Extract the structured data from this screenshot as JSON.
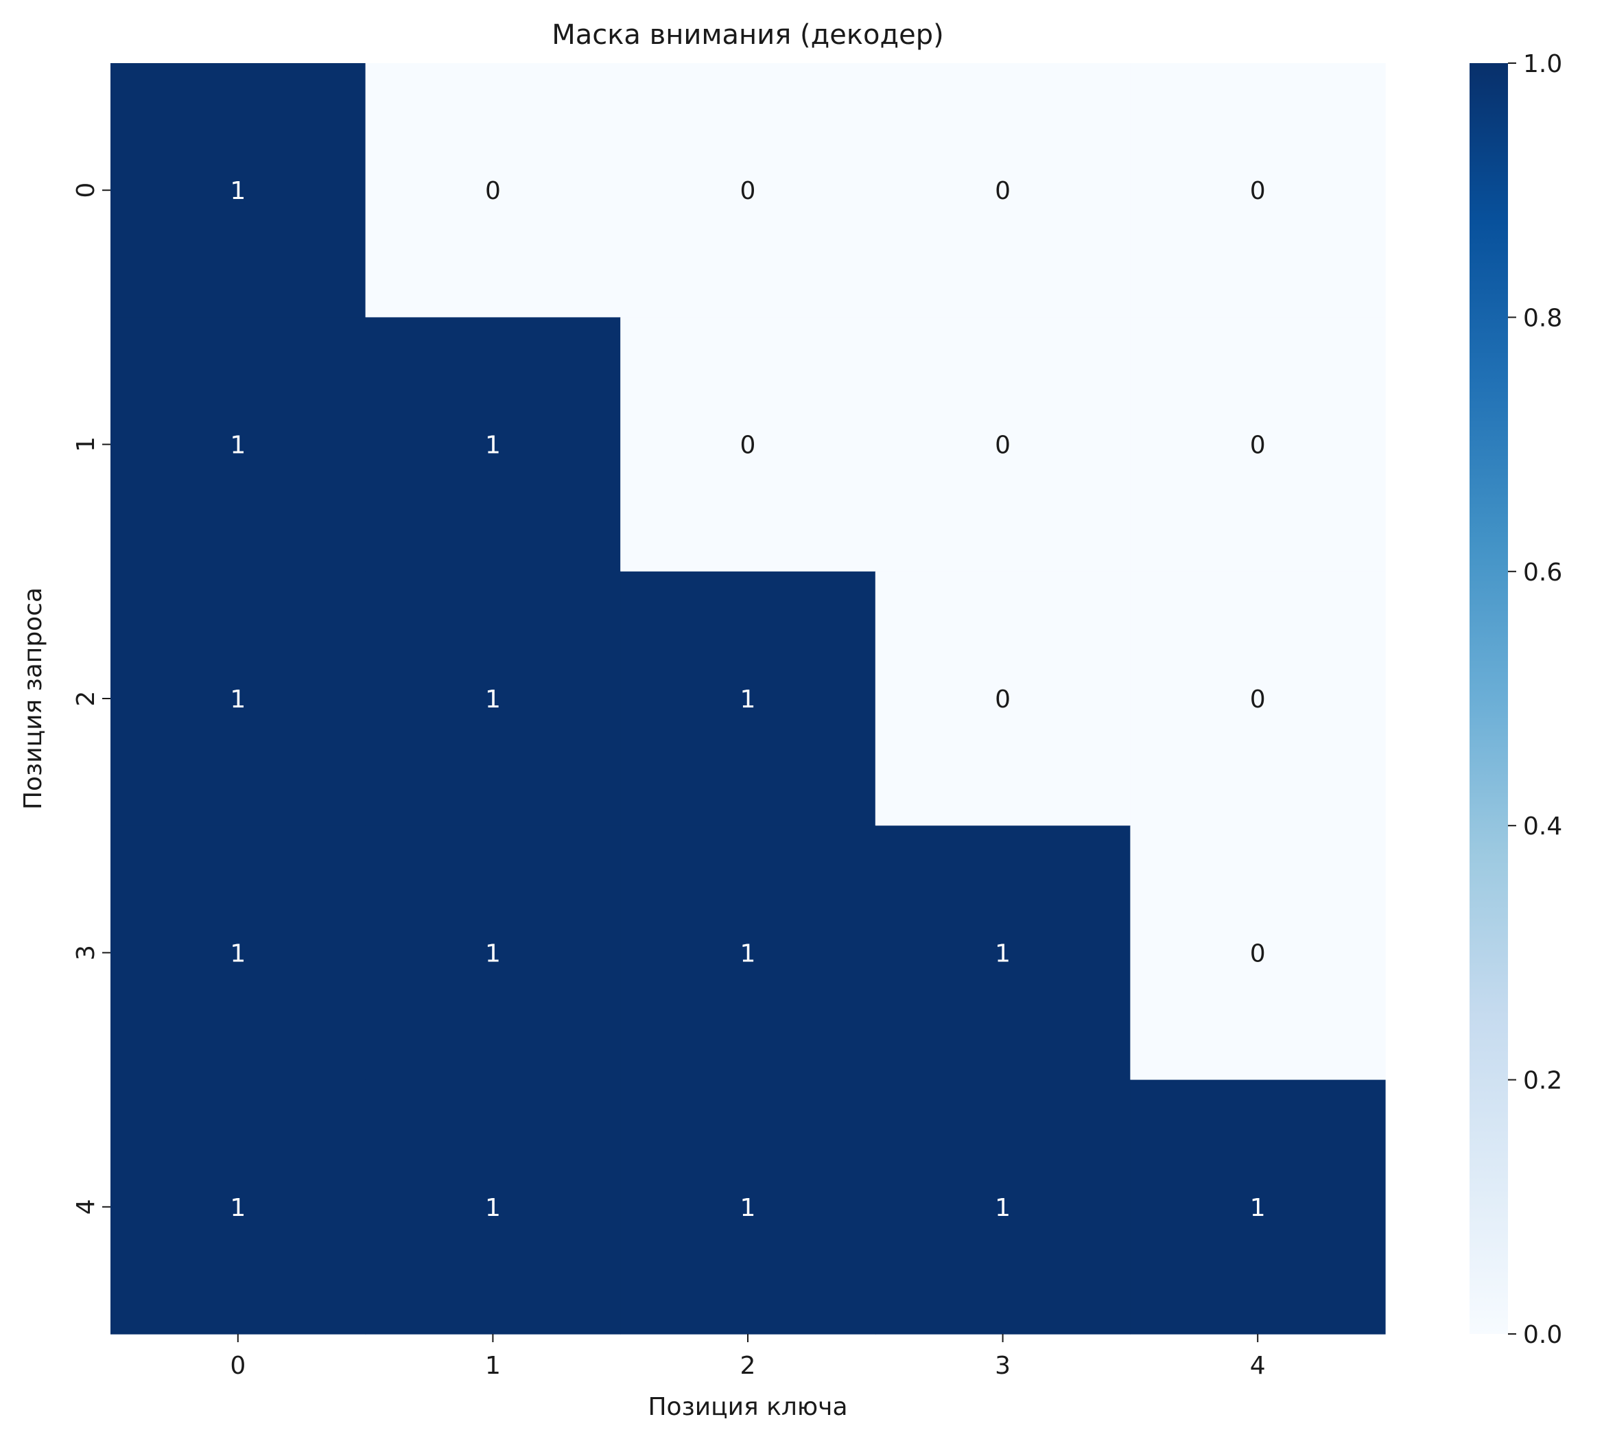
{
  "chart_data": {
    "type": "heatmap",
    "title": "Маска внимания (декодер)",
    "xlabel": "Позиция ключа",
    "ylabel": "Позиция запроса",
    "x_categories": [
      "0",
      "1",
      "2",
      "3",
      "4"
    ],
    "y_categories": [
      "0",
      "1",
      "2",
      "3",
      "4"
    ],
    "values": [
      [
        1,
        0,
        0,
        0,
        0
      ],
      [
        1,
        1,
        0,
        0,
        0
      ],
      [
        1,
        1,
        1,
        0,
        0
      ],
      [
        1,
        1,
        1,
        1,
        0
      ],
      [
        1,
        1,
        1,
        1,
        1
      ]
    ],
    "annotations": true,
    "colormap": "Blues",
    "colorbar": {
      "range": [
        0.0,
        1.0
      ],
      "ticks": [
        "0.0",
        "0.2",
        "0.4",
        "0.6",
        "0.8",
        "1.0"
      ],
      "tick_values": [
        0,
        0.2,
        0.4,
        0.6,
        0.8,
        1.0
      ]
    },
    "colors": {
      "high": "#08306b",
      "low": "#f7fbff",
      "text_on_high": "#ffffff",
      "text_on_low": "#1a1a1a"
    },
    "grid": false
  }
}
